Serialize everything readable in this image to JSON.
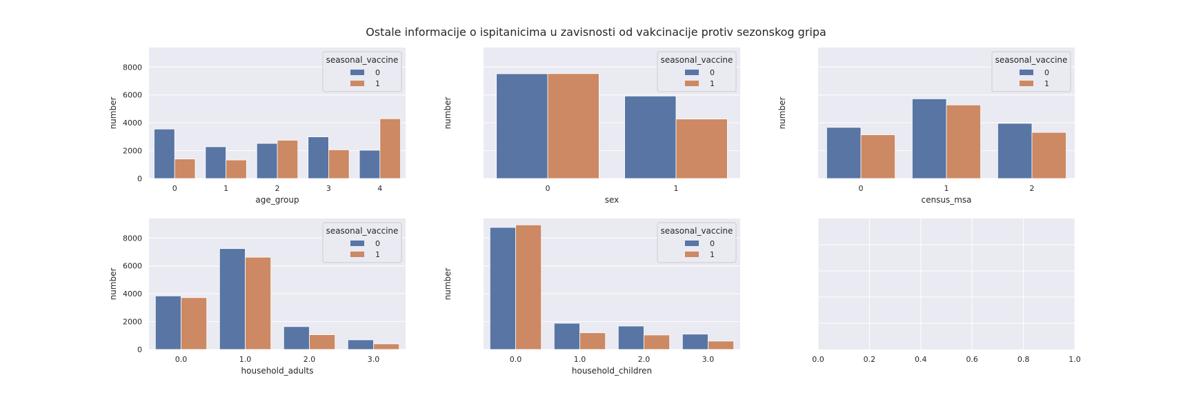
{
  "figure": {
    "title": "Ostale informacije o ispitanicima u zavisnosti od vakcinacije protiv sezonskog gripa"
  },
  "colors": {
    "series_0": "#5875a4",
    "series_1": "#cc8963",
    "panel_bg": "#eaeaf2",
    "grid": "#ffffff"
  },
  "chart_data": [
    {
      "type": "bar",
      "xlabel": "age_group",
      "ylabel": "number",
      "categories": [
        "0",
        "1",
        "2",
        "3",
        "4"
      ],
      "legend": {
        "title": "seasonal_vaccine",
        "position": "upper-right"
      },
      "series": [
        {
          "name": "0",
          "values": [
            3550,
            2280,
            2520,
            2990,
            2030
          ]
        },
        {
          "name": "1",
          "values": [
            1400,
            1330,
            2750,
            2060,
            4290
          ]
        }
      ],
      "ylim": [
        0,
        9400
      ],
      "yticks": [
        "0",
        "2000",
        "4000",
        "6000",
        "8000"
      ],
      "show_yticklabels": true,
      "grid": true
    },
    {
      "type": "bar",
      "xlabel": "sex",
      "ylabel": "number",
      "categories": [
        "0",
        "1"
      ],
      "legend": {
        "title": "seasonal_vaccine",
        "position": "upper-right"
      },
      "series": [
        {
          "name": "0",
          "values": [
            7520,
            5920
          ]
        },
        {
          "name": "1",
          "values": [
            7530,
            4270
          ]
        }
      ],
      "ylim": [
        0,
        9400
      ],
      "yticks": [
        "0",
        "2000",
        "4000",
        "6000",
        "8000"
      ],
      "show_yticklabels": false,
      "grid": true
    },
    {
      "type": "bar",
      "xlabel": "census_msa",
      "ylabel": "number",
      "categories": [
        "0",
        "1",
        "2"
      ],
      "legend": {
        "title": "seasonal_vaccine",
        "position": "upper-right"
      },
      "series": [
        {
          "name": "0",
          "values": [
            3670,
            5720,
            3960
          ]
        },
        {
          "name": "1",
          "values": [
            3140,
            5280,
            3310
          ]
        }
      ],
      "ylim": [
        0,
        9400
      ],
      "yticks": [
        "0",
        "2000",
        "4000",
        "6000",
        "8000"
      ],
      "show_yticklabels": false,
      "grid": true
    },
    {
      "type": "bar",
      "xlabel": "household_adults",
      "ylabel": "number",
      "categories": [
        "0.0",
        "1.0",
        "2.0",
        "3.0"
      ],
      "legend": {
        "title": "seasonal_vaccine",
        "position": "upper-right"
      },
      "series": [
        {
          "name": "0",
          "values": [
            3840,
            7240,
            1640,
            690
          ]
        },
        {
          "name": "1",
          "values": [
            3720,
            6620,
            1060,
            400
          ]
        }
      ],
      "ylim": [
        0,
        9400
      ],
      "yticks": [
        "0",
        "2000",
        "4000",
        "6000",
        "8000"
      ],
      "show_yticklabels": true,
      "grid": true
    },
    {
      "type": "bar",
      "xlabel": "household_children",
      "ylabel": "number",
      "categories": [
        "0.0",
        "1.0",
        "2.0",
        "3.0"
      ],
      "legend": {
        "title": "seasonal_vaccine",
        "position": "upper-right"
      },
      "series": [
        {
          "name": "0",
          "values": [
            8760,
            1880,
            1680,
            1100
          ]
        },
        {
          "name": "1",
          "values": [
            8940,
            1200,
            1040,
            600
          ]
        }
      ],
      "ylim": [
        0,
        9400
      ],
      "yticks": [
        "0",
        "2000",
        "4000",
        "6000",
        "8000"
      ],
      "show_yticklabels": false,
      "grid": true
    },
    {
      "type": "empty",
      "xlim": [
        0,
        1
      ],
      "xticks": [
        "0.0",
        "0.2",
        "0.4",
        "0.6",
        "0.8",
        "1.0"
      ],
      "grid": true
    }
  ]
}
